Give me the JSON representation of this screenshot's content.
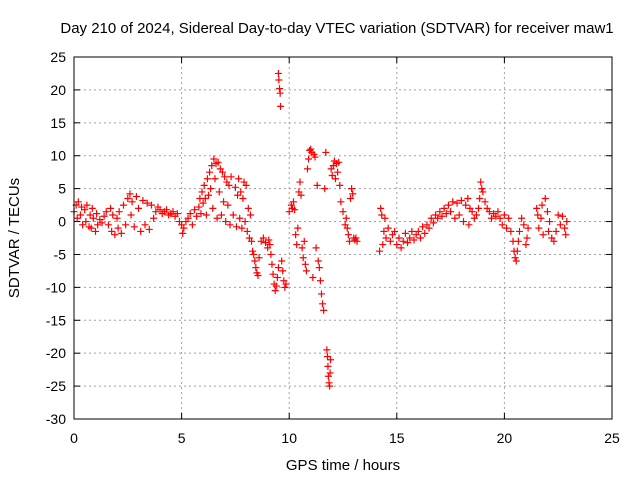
{
  "chart_data": {
    "type": "scatter",
    "title": "Day 210 of 2024, Sidereal Day-to-day VTEC variation (SDTVAR) for receiver maw1",
    "xlabel": "GPS time / hours",
    "ylabel": "SDTVAR / TECUs",
    "xlim": [
      0,
      25
    ],
    "ylim": [
      -30,
      25
    ],
    "xticks": [
      0,
      5,
      10,
      15,
      20,
      25
    ],
    "yticks": [
      -30,
      -25,
      -20,
      -15,
      -10,
      -5,
      0,
      5,
      10,
      15,
      20,
      25
    ],
    "grid": true,
    "marker": "plus",
    "color": "#ff0000",
    "series": [
      {
        "name": "SDTVAR",
        "points": [
          [
            0.0,
            1.5
          ],
          [
            0.1,
            2.5
          ],
          [
            0.15,
            0.5
          ],
          [
            0.2,
            3.0
          ],
          [
            0.3,
            1.0
          ],
          [
            0.35,
            2.2
          ],
          [
            0.4,
            -0.5
          ],
          [
            0.5,
            1.8
          ],
          [
            0.55,
            0.0
          ],
          [
            0.6,
            2.5
          ],
          [
            0.7,
            -0.8
          ],
          [
            0.75,
            1.0
          ],
          [
            0.8,
            -1.0
          ],
          [
            0.85,
            2.0
          ],
          [
            0.9,
            0.5
          ],
          [
            1.0,
            -1.5
          ],
          [
            1.05,
            1.2
          ],
          [
            1.1,
            -0.5
          ],
          [
            1.2,
            0.3
          ],
          [
            1.3,
            -0.2
          ],
          [
            1.4,
            0.8
          ],
          [
            1.5,
            1.5
          ],
          [
            1.6,
            -0.5
          ],
          [
            1.7,
            2.0
          ],
          [
            1.75,
            -1.5
          ],
          [
            1.8,
            1.0
          ],
          [
            1.9,
            -2.0
          ],
          [
            2.0,
            0.5
          ],
          [
            2.05,
            -1.0
          ],
          [
            2.1,
            1.5
          ],
          [
            2.2,
            -1.8
          ],
          [
            2.3,
            2.5
          ],
          [
            2.4,
            -0.5
          ],
          [
            2.5,
            3.5
          ],
          [
            2.6,
            4.2
          ],
          [
            2.65,
            1.0
          ],
          [
            2.7,
            3.0
          ],
          [
            2.8,
            -0.8
          ],
          [
            2.9,
            3.8
          ],
          [
            3.0,
            2.0
          ],
          [
            3.1,
            -1.5
          ],
          [
            3.2,
            3.2
          ],
          [
            3.3,
            -0.5
          ],
          [
            3.4,
            2.8
          ],
          [
            3.5,
            -1.2
          ],
          [
            3.6,
            2.5
          ],
          [
            3.7,
            0.5
          ],
          [
            3.8,
            1.5
          ],
          [
            3.9,
            2.2
          ],
          [
            4.0,
            1.8
          ],
          [
            4.1,
            1.2
          ],
          [
            4.2,
            1.5
          ],
          [
            4.3,
            1.8
          ],
          [
            4.4,
            1.0
          ],
          [
            4.5,
            1.2
          ],
          [
            4.6,
            1.5
          ],
          [
            4.7,
            0.8
          ],
          [
            4.8,
            1.2
          ],
          [
            4.9,
            0.0
          ],
          [
            5.0,
            -0.5
          ],
          [
            5.05,
            -1.8
          ],
          [
            5.1,
            -1.0
          ],
          [
            5.2,
            0.0
          ],
          [
            5.3,
            0.5
          ],
          [
            5.4,
            1.2
          ],
          [
            5.5,
            -0.5
          ],
          [
            5.6,
            1.8
          ],
          [
            5.7,
            0.8
          ],
          [
            5.8,
            2.2
          ],
          [
            5.85,
            3.5
          ],
          [
            5.9,
            1.2
          ],
          [
            5.95,
            4.5
          ],
          [
            6.0,
            2.8
          ],
          [
            6.05,
            5.5
          ],
          [
            6.1,
            3.5
          ],
          [
            6.15,
            1.0
          ],
          [
            6.2,
            6.5
          ],
          [
            6.25,
            4.0
          ],
          [
            6.3,
            7.5
          ],
          [
            6.35,
            5.0
          ],
          [
            6.4,
            8.5
          ],
          [
            6.45,
            2.0
          ],
          [
            6.5,
            9.5
          ],
          [
            6.55,
            6.5
          ],
          [
            6.6,
            8.8
          ],
          [
            6.65,
            0.5
          ],
          [
            6.7,
            9.0
          ],
          [
            6.75,
            4.5
          ],
          [
            6.8,
            8.0
          ],
          [
            6.85,
            1.0
          ],
          [
            6.9,
            7.5
          ],
          [
            6.95,
            3.0
          ],
          [
            7.0,
            6.8
          ],
          [
            7.05,
            0.0
          ],
          [
            7.1,
            6.0
          ],
          [
            7.15,
            2.5
          ],
          [
            7.2,
            5.5
          ],
          [
            7.25,
            -0.5
          ],
          [
            7.3,
            6.8
          ],
          [
            7.4,
            1.0
          ],
          [
            7.5,
            5.2
          ],
          [
            7.55,
            -0.8
          ],
          [
            7.6,
            4.0
          ],
          [
            7.65,
            6.5
          ],
          [
            7.7,
            0.5
          ],
          [
            7.75,
            4.5
          ],
          [
            7.8,
            -1.0
          ],
          [
            7.85,
            3.5
          ],
          [
            7.9,
            6.0
          ],
          [
            7.95,
            0.0
          ],
          [
            8.0,
            5.5
          ],
          [
            8.05,
            -1.5
          ],
          [
            8.1,
            2.0
          ],
          [
            8.15,
            -2.5
          ],
          [
            8.2,
            1.0
          ],
          [
            8.25,
            -3.0
          ],
          [
            8.3,
            -4.5
          ],
          [
            8.35,
            -5.0
          ],
          [
            8.4,
            -6.0
          ],
          [
            8.45,
            -7.0
          ],
          [
            8.5,
            -7.8
          ],
          [
            8.55,
            -8.2
          ],
          [
            8.6,
            -5.5
          ],
          [
            8.7,
            -3.0
          ],
          [
            8.8,
            -2.5
          ],
          [
            8.9,
            -3.2
          ],
          [
            9.0,
            -4.0
          ],
          [
            9.05,
            -2.8
          ],
          [
            9.1,
            -3.5
          ],
          [
            9.15,
            -5.0
          ],
          [
            9.2,
            -6.5
          ],
          [
            9.25,
            -8.0
          ],
          [
            9.3,
            -9.5
          ],
          [
            9.35,
            -10.5
          ],
          [
            9.4,
            -9.8
          ],
          [
            9.45,
            -8.5
          ],
          [
            9.5,
            -7.0
          ],
          [
            9.5,
            22.5
          ],
          [
            9.52,
            21.5
          ],
          [
            9.55,
            20.2
          ],
          [
            9.58,
            19.5
          ],
          [
            9.6,
            17.5
          ],
          [
            9.65,
            -6.0
          ],
          [
            9.7,
            -7.5
          ],
          [
            9.75,
            -9.0
          ],
          [
            9.8,
            -10.0
          ],
          [
            9.85,
            -9.5
          ],
          [
            10.0,
            1.5
          ],
          [
            10.1,
            2.5
          ],
          [
            10.15,
            2.0
          ],
          [
            10.2,
            3.0
          ],
          [
            10.25,
            1.8
          ],
          [
            10.3,
            -2.0
          ],
          [
            10.35,
            -3.5
          ],
          [
            10.4,
            -1.0
          ],
          [
            10.45,
            4.5
          ],
          [
            10.5,
            6.0
          ],
          [
            10.55,
            4.0
          ],
          [
            10.6,
            -4.0
          ],
          [
            10.65,
            -5.5
          ],
          [
            10.7,
            -3.0
          ],
          [
            10.75,
            -6.5
          ],
          [
            10.8,
            -7.5
          ],
          [
            10.85,
            8.0
          ],
          [
            10.9,
            9.5
          ],
          [
            10.95,
            10.8
          ],
          [
            11.0,
            11.0
          ],
          [
            11.05,
            10.5
          ],
          [
            11.1,
            -8.5
          ],
          [
            11.15,
            10.2
          ],
          [
            11.2,
            9.8
          ],
          [
            11.25,
            -4.0
          ],
          [
            11.3,
            5.5
          ],
          [
            11.35,
            -6.0
          ],
          [
            11.4,
            -7.0
          ],
          [
            11.45,
            -9.0
          ],
          [
            11.5,
            -11.0
          ],
          [
            11.55,
            -12.5
          ],
          [
            11.6,
            -13.5
          ],
          [
            11.65,
            5.0
          ],
          [
            11.7,
            10.5
          ],
          [
            11.75,
            -19.5
          ],
          [
            11.78,
            -20.5
          ],
          [
            11.8,
            -22.0
          ],
          [
            11.82,
            -23.5
          ],
          [
            11.85,
            -24.5
          ],
          [
            11.88,
            -25.0
          ],
          [
            11.9,
            -23.0
          ],
          [
            11.92,
            -21.0
          ],
          [
            11.95,
            8.0
          ],
          [
            12.0,
            7.0
          ],
          [
            12.05,
            8.5
          ],
          [
            12.1,
            9.2
          ],
          [
            12.15,
            6.5
          ],
          [
            12.2,
            8.8
          ],
          [
            12.25,
            7.5
          ],
          [
            12.3,
            9.0
          ],
          [
            12.35,
            5.5
          ],
          [
            12.4,
            3.0
          ],
          [
            12.5,
            1.5
          ],
          [
            12.6,
            -0.5
          ],
          [
            12.65,
            0.5
          ],
          [
            12.7,
            -1.0
          ],
          [
            12.75,
            -2.0
          ],
          [
            12.8,
            -3.0
          ],
          [
            12.85,
            3.5
          ],
          [
            12.9,
            5.0
          ],
          [
            12.95,
            4.2
          ],
          [
            13.0,
            -2.5
          ],
          [
            13.05,
            -2.8
          ],
          [
            13.1,
            -2.5
          ],
          [
            13.15,
            -3.0
          ],
          [
            14.2,
            -4.5
          ],
          [
            14.25,
            2.0
          ],
          [
            14.3,
            1.0
          ],
          [
            14.35,
            -3.5
          ],
          [
            14.4,
            -1.5
          ],
          [
            14.45,
            0.5
          ],
          [
            14.5,
            -2.5
          ],
          [
            14.6,
            -1.0
          ],
          [
            14.7,
            -3.0
          ],
          [
            14.8,
            -2.0
          ],
          [
            14.9,
            -1.5
          ],
          [
            15.0,
            -3.5
          ],
          [
            15.1,
            -2.5
          ],
          [
            15.2,
            -4.0
          ],
          [
            15.3,
            -3.0
          ],
          [
            15.4,
            -1.8
          ],
          [
            15.5,
            -3.2
          ],
          [
            15.6,
            -2.5
          ],
          [
            15.7,
            -1.5
          ],
          [
            15.8,
            -2.8
          ],
          [
            15.9,
            -2.0
          ],
          [
            16.0,
            -1.5
          ],
          [
            16.1,
            -2.5
          ],
          [
            16.2,
            -0.8
          ],
          [
            16.3,
            -1.8
          ],
          [
            16.4,
            -0.5
          ],
          [
            16.5,
            -1.0
          ],
          [
            16.6,
            0.5
          ],
          [
            16.7,
            -0.2
          ],
          [
            16.8,
            1.0
          ],
          [
            16.9,
            0.5
          ],
          [
            17.0,
            1.5
          ],
          [
            17.1,
            0.8
          ],
          [
            17.2,
            2.0
          ],
          [
            17.3,
            1.2
          ],
          [
            17.4,
            2.5
          ],
          [
            17.5,
            1.5
          ],
          [
            17.6,
            3.0
          ],
          [
            17.7,
            0.5
          ],
          [
            17.8,
            2.8
          ],
          [
            17.9,
            1.0
          ],
          [
            18.0,
            3.2
          ],
          [
            18.1,
            0.0
          ],
          [
            18.2,
            2.5
          ],
          [
            18.3,
            3.5
          ],
          [
            18.35,
            -0.5
          ],
          [
            18.4,
            2.0
          ],
          [
            18.5,
            1.5
          ],
          [
            18.6,
            0.5
          ],
          [
            18.7,
            1.0
          ],
          [
            18.8,
            2.0
          ],
          [
            18.85,
            3.5
          ],
          [
            18.9,
            6.0
          ],
          [
            18.95,
            5.0
          ],
          [
            19.0,
            4.5
          ],
          [
            19.1,
            3.0
          ],
          [
            19.2,
            2.0
          ],
          [
            19.3,
            1.5
          ],
          [
            19.4,
            0.5
          ],
          [
            19.5,
            1.2
          ],
          [
            19.6,
            0.8
          ],
          [
            19.7,
            1.5
          ],
          [
            19.8,
            0.5
          ],
          [
            19.9,
            -0.5
          ],
          [
            20.0,
            1.0
          ],
          [
            20.1,
            -1.0
          ],
          [
            20.2,
            0.5
          ],
          [
            20.3,
            -1.5
          ],
          [
            20.4,
            -3.0
          ],
          [
            20.45,
            -4.5
          ],
          [
            20.5,
            -5.5
          ],
          [
            20.55,
            -6.0
          ],
          [
            20.6,
            -4.5
          ],
          [
            20.65,
            -3.0
          ],
          [
            20.7,
            -1.5
          ],
          [
            20.8,
            0.5
          ],
          [
            20.9,
            -0.5
          ],
          [
            21.0,
            -3.5
          ],
          [
            21.05,
            -2.5
          ],
          [
            21.1,
            -1.0
          ],
          [
            21.5,
            2.0
          ],
          [
            21.55,
            1.0
          ],
          [
            21.6,
            -1.0
          ],
          [
            21.7,
            0.5
          ],
          [
            21.75,
            2.5
          ],
          [
            21.8,
            -2.0
          ],
          [
            21.9,
            3.5
          ],
          [
            22.0,
            1.5
          ],
          [
            22.05,
            -1.5
          ],
          [
            22.1,
            0.0
          ],
          [
            22.2,
            -2.5
          ],
          [
            22.3,
            -3.0
          ],
          [
            22.4,
            -1.5
          ],
          [
            22.5,
            1.0
          ],
          [
            22.6,
            -0.5
          ],
          [
            22.7,
            0.8
          ],
          [
            22.8,
            -1.0
          ],
          [
            22.85,
            -2.0
          ],
          [
            22.9,
            0.0
          ]
        ]
      }
    ]
  }
}
